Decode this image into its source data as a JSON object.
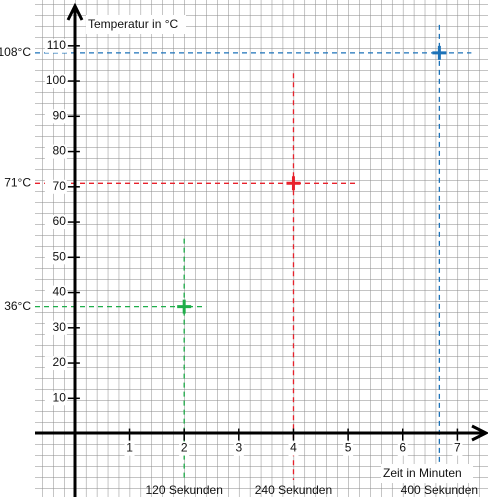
{
  "chart_data": {
    "type": "scatter",
    "y_axis_label": "Temperatur in °C",
    "x_axis_label": "Zeit in Minuten",
    "xlim": [
      -0.73,
      7.56
    ],
    "ylim": [
      -18,
      123
    ],
    "xticks": [
      1,
      2,
      3,
      4,
      5,
      6,
      7
    ],
    "yticks": [
      10,
      20,
      30,
      40,
      50,
      60,
      70,
      80,
      90,
      100,
      110
    ],
    "grid": true,
    "points": [
      {
        "x": 2,
        "y": 36,
        "color": "#1fae4a",
        "y_label": "36°C",
        "x_label": "120 Sekunden"
      },
      {
        "x": 4,
        "y": 71,
        "color": "#e8212b",
        "y_label": "71°C",
        "x_label": "240 Sekunden"
      },
      {
        "x": 6.67,
        "y": 108,
        "color": "#1c72b8",
        "y_label": "108°C",
        "x_label": "400 Sekunden"
      }
    ]
  }
}
